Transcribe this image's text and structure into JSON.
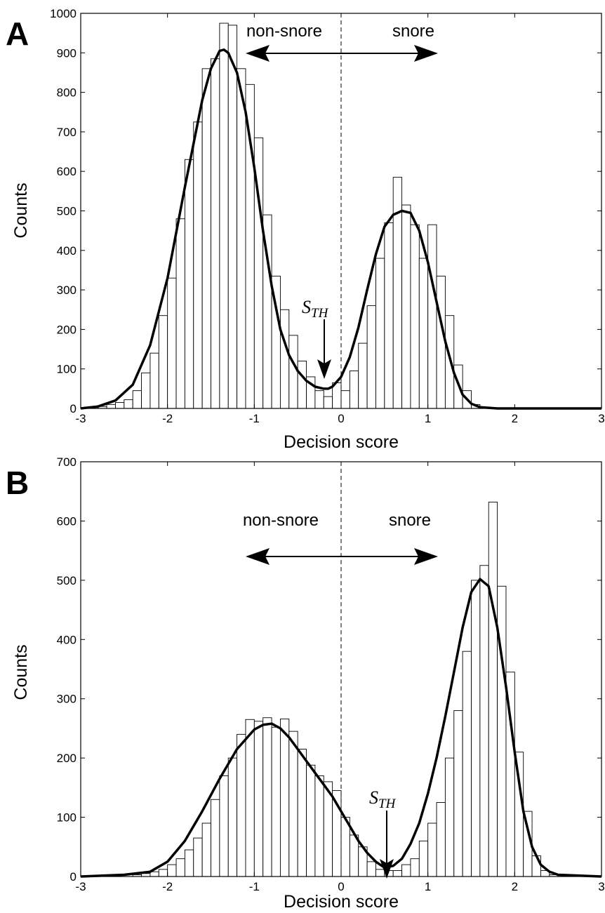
{
  "chart_data": [
    {
      "panel": "A",
      "type": "bar",
      "xlabel": "Decision score",
      "ylabel": "Counts",
      "xlim": [
        -3,
        3
      ],
      "ylim": [
        0,
        1000
      ],
      "x_ticks": [
        -3,
        -2,
        -1,
        0,
        1,
        2,
        3
      ],
      "y_ticks": [
        0,
        100,
        200,
        300,
        400,
        500,
        600,
        700,
        800,
        900,
        1000
      ],
      "grid": false,
      "bin_width": 0.1,
      "bars": [
        {
          "x0": -3.0,
          "value": 2
        },
        {
          "x0": -2.9,
          "value": 3
        },
        {
          "x0": -2.8,
          "value": 5
        },
        {
          "x0": -2.7,
          "value": 10
        },
        {
          "x0": -2.6,
          "value": 15
        },
        {
          "x0": -2.5,
          "value": 22
        },
        {
          "x0": -2.4,
          "value": 45
        },
        {
          "x0": -2.3,
          "value": 90
        },
        {
          "x0": -2.2,
          "value": 140
        },
        {
          "x0": -2.1,
          "value": 235
        },
        {
          "x0": -2.0,
          "value": 330
        },
        {
          "x0": -1.9,
          "value": 480
        },
        {
          "x0": -1.8,
          "value": 630
        },
        {
          "x0": -1.7,
          "value": 725
        },
        {
          "x0": -1.6,
          "value": 860
        },
        {
          "x0": -1.5,
          "value": 885
        },
        {
          "x0": -1.4,
          "value": 975
        },
        {
          "x0": -1.3,
          "value": 970
        },
        {
          "x0": -1.2,
          "value": 860
        },
        {
          "x0": -1.1,
          "value": 820
        },
        {
          "x0": -1.0,
          "value": 685
        },
        {
          "x0": -0.9,
          "value": 490
        },
        {
          "x0": -0.8,
          "value": 335
        },
        {
          "x0": -0.7,
          "value": 250
        },
        {
          "x0": -0.6,
          "value": 185
        },
        {
          "x0": -0.5,
          "value": 120
        },
        {
          "x0": -0.4,
          "value": 80
        },
        {
          "x0": -0.3,
          "value": 45
        },
        {
          "x0": -0.2,
          "value": 30
        },
        {
          "x0": -0.1,
          "value": 65
        },
        {
          "x0": 0.0,
          "value": 45
        },
        {
          "x0": 0.1,
          "value": 95
        },
        {
          "x0": 0.2,
          "value": 165
        },
        {
          "x0": 0.3,
          "value": 260
        },
        {
          "x0": 0.4,
          "value": 380
        },
        {
          "x0": 0.5,
          "value": 470
        },
        {
          "x0": 0.6,
          "value": 585
        },
        {
          "x0": 0.7,
          "value": 515
        },
        {
          "x0": 0.8,
          "value": 465
        },
        {
          "x0": 0.9,
          "value": 380
        },
        {
          "x0": 1.0,
          "value": 465
        },
        {
          "x0": 1.1,
          "value": 335
        },
        {
          "x0": 1.2,
          "value": 235
        },
        {
          "x0": 1.3,
          "value": 110
        },
        {
          "x0": 1.4,
          "value": 45
        },
        {
          "x0": 1.5,
          "value": 10
        },
        {
          "x0": 1.6,
          "value": 3
        }
      ],
      "fit_curve": {
        "x": [
          -3.0,
          -2.8,
          -2.6,
          -2.4,
          -2.2,
          -2.0,
          -1.8,
          -1.6,
          -1.5,
          -1.4,
          -1.35,
          -1.3,
          -1.2,
          -1.1,
          -1.0,
          -0.9,
          -0.8,
          -0.7,
          -0.6,
          -0.5,
          -0.4,
          -0.3,
          -0.2,
          -0.15,
          -0.1,
          0.0,
          0.1,
          0.2,
          0.3,
          0.4,
          0.5,
          0.6,
          0.7,
          0.8,
          0.9,
          1.0,
          1.1,
          1.2,
          1.3,
          1.4,
          1.5,
          1.6,
          1.8,
          2.0,
          2.5,
          3.0
        ],
        "y": [
          0,
          5,
          20,
          60,
          160,
          330,
          560,
          780,
          860,
          905,
          908,
          900,
          850,
          750,
          610,
          450,
          310,
          200,
          135,
          95,
          70,
          55,
          50,
          50,
          55,
          80,
          130,
          205,
          300,
          390,
          460,
          490,
          500,
          495,
          450,
          370,
          270,
          170,
          90,
          35,
          12,
          3,
          0,
          0,
          0,
          0
        ]
      },
      "threshold": 0,
      "sth_marker_x": -0.2,
      "sth_marker_y": 50,
      "annotations": {
        "left_region": "non-snore",
        "right_region": "snore",
        "sth_main": "S",
        "sth_sub": "TH"
      }
    },
    {
      "panel": "B",
      "type": "bar",
      "xlabel": "Decision score",
      "ylabel": "Counts",
      "xlim": [
        -3,
        3
      ],
      "ylim": [
        0,
        700
      ],
      "x_ticks": [
        -3,
        -2,
        -1,
        0,
        1,
        2,
        3
      ],
      "y_ticks": [
        0,
        100,
        200,
        300,
        400,
        500,
        600,
        700
      ],
      "grid": false,
      "bin_width": 0.1,
      "bars": [
        {
          "x0": -2.4,
          "value": 3
        },
        {
          "x0": -2.3,
          "value": 5
        },
        {
          "x0": -2.2,
          "value": 8
        },
        {
          "x0": -2.1,
          "value": 12
        },
        {
          "x0": -2.0,
          "value": 20
        },
        {
          "x0": -1.9,
          "value": 30
        },
        {
          "x0": -1.8,
          "value": 45
        },
        {
          "x0": -1.7,
          "value": 65
        },
        {
          "x0": -1.6,
          "value": 90
        },
        {
          "x0": -1.5,
          "value": 130
        },
        {
          "x0": -1.4,
          "value": 170
        },
        {
          "x0": -1.3,
          "value": 200
        },
        {
          "x0": -1.2,
          "value": 240
        },
        {
          "x0": -1.1,
          "value": 265
        },
        {
          "x0": -1.0,
          "value": 262
        },
        {
          "x0": -0.9,
          "value": 268
        },
        {
          "x0": -0.8,
          "value": 252
        },
        {
          "x0": -0.7,
          "value": 266
        },
        {
          "x0": -0.6,
          "value": 245
        },
        {
          "x0": -0.5,
          "value": 215
        },
        {
          "x0": -0.4,
          "value": 188
        },
        {
          "x0": -0.3,
          "value": 170
        },
        {
          "x0": -0.2,
          "value": 160
        },
        {
          "x0": -0.1,
          "value": 145
        },
        {
          "x0": 0.0,
          "value": 100
        },
        {
          "x0": 0.1,
          "value": 70
        },
        {
          "x0": 0.2,
          "value": 50
        },
        {
          "x0": 0.3,
          "value": 25
        },
        {
          "x0": 0.4,
          "value": 12
        },
        {
          "x0": 0.5,
          "value": 10
        },
        {
          "x0": 0.6,
          "value": 10
        },
        {
          "x0": 0.7,
          "value": 20
        },
        {
          "x0": 0.8,
          "value": 30
        },
        {
          "x0": 0.9,
          "value": 60
        },
        {
          "x0": 1.0,
          "value": 90
        },
        {
          "x0": 1.1,
          "value": 125
        },
        {
          "x0": 1.2,
          "value": 200
        },
        {
          "x0": 1.3,
          "value": 280
        },
        {
          "x0": 1.4,
          "value": 380
        },
        {
          "x0": 1.5,
          "value": 500
        },
        {
          "x0": 1.6,
          "value": 525
        },
        {
          "x0": 1.7,
          "value": 632
        },
        {
          "x0": 1.8,
          "value": 490
        },
        {
          "x0": 1.9,
          "value": 345
        },
        {
          "x0": 2.0,
          "value": 210
        },
        {
          "x0": 2.1,
          "value": 110
        },
        {
          "x0": 2.2,
          "value": 35
        },
        {
          "x0": 2.3,
          "value": 10
        },
        {
          "x0": 2.4,
          "value": 3
        }
      ],
      "fit_curve": {
        "x": [
          -3.0,
          -2.5,
          -2.2,
          -2.0,
          -1.8,
          -1.6,
          -1.4,
          -1.2,
          -1.0,
          -0.9,
          -0.8,
          -0.7,
          -0.6,
          -0.5,
          -0.4,
          -0.3,
          -0.2,
          -0.1,
          0.0,
          0.1,
          0.2,
          0.3,
          0.4,
          0.5,
          0.6,
          0.7,
          0.8,
          0.9,
          1.0,
          1.1,
          1.2,
          1.3,
          1.4,
          1.5,
          1.6,
          1.7,
          1.8,
          1.9,
          2.0,
          2.1,
          2.2,
          2.3,
          2.4,
          2.5,
          3.0
        ],
        "y": [
          0,
          3,
          8,
          25,
          60,
          110,
          165,
          215,
          248,
          256,
          258,
          250,
          235,
          215,
          195,
          175,
          155,
          135,
          110,
          85,
          60,
          40,
          25,
          15,
          18,
          30,
          55,
          90,
          140,
          200,
          270,
          345,
          420,
          480,
          502,
          490,
          420,
          320,
          210,
          110,
          50,
          20,
          8,
          3,
          0
        ]
      },
      "threshold": 0,
      "sth_marker_x": 0.55,
      "sth_marker_y": 15,
      "annotations": {
        "left_region": "non-snore",
        "right_region": "snore",
        "sth_main": "S",
        "sth_sub": "TH"
      }
    }
  ]
}
